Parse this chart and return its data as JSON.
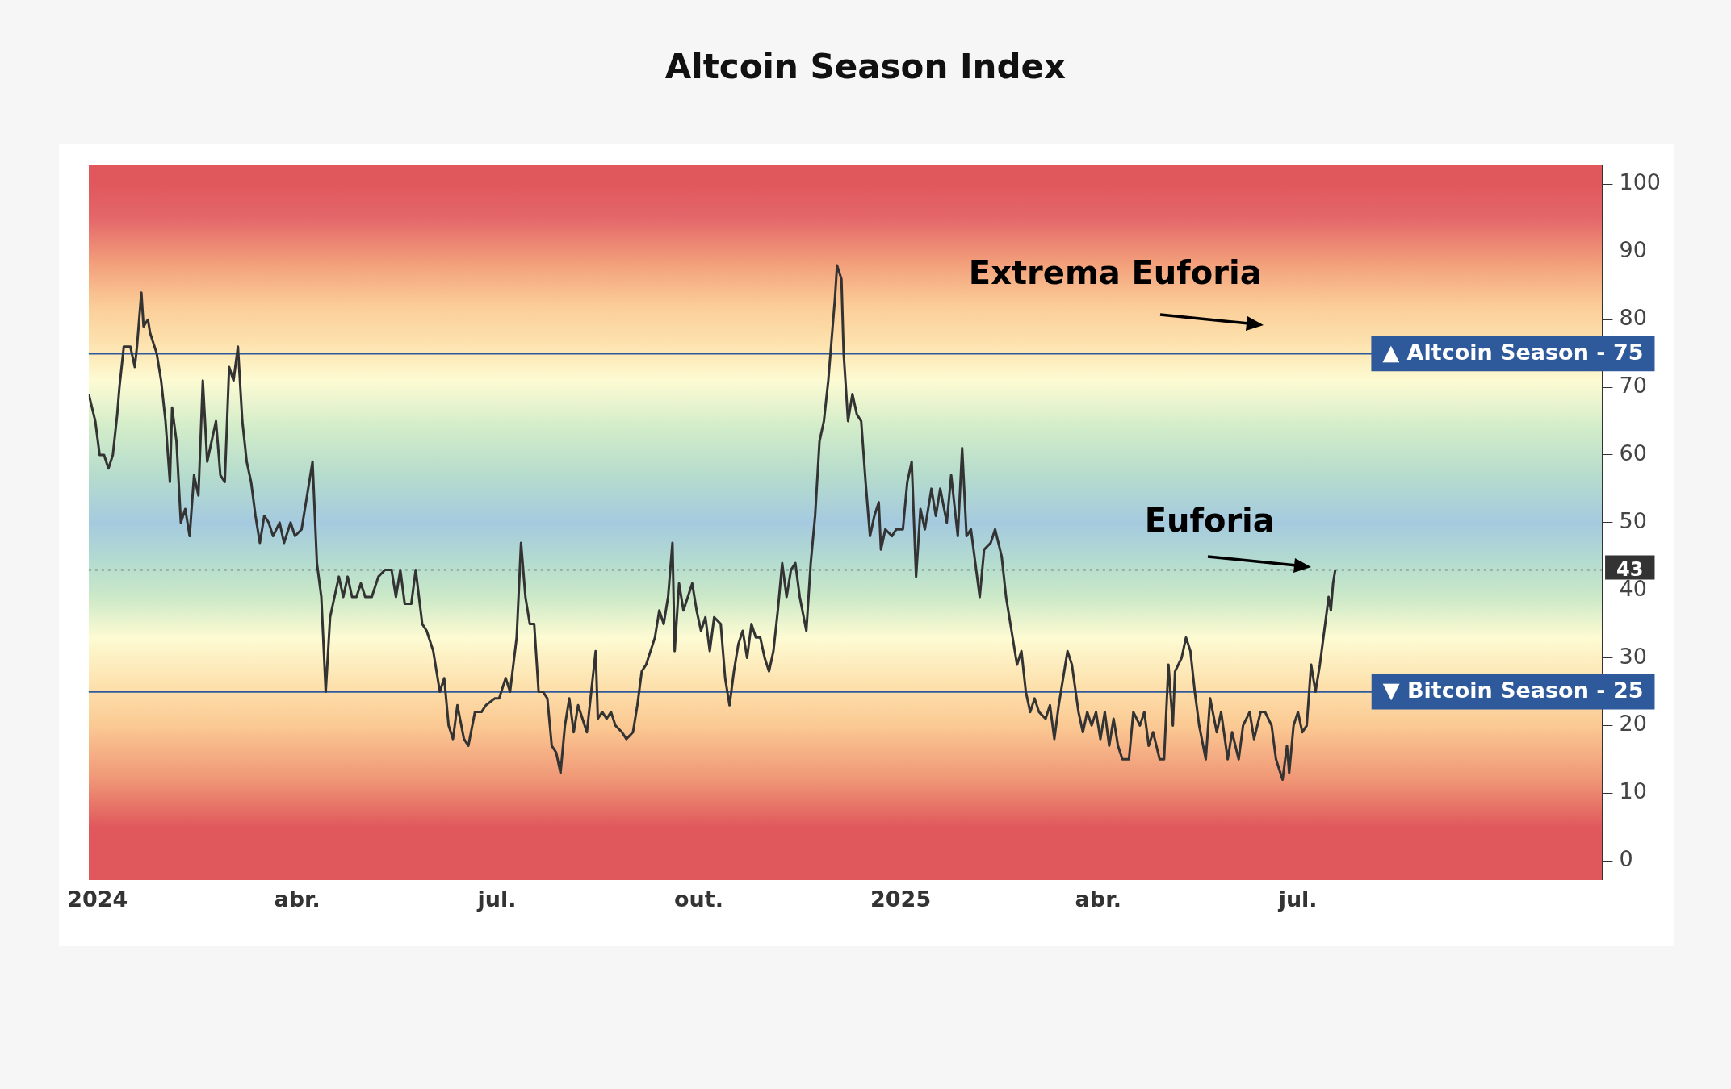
{
  "chart_data": {
    "type": "line",
    "title": "Altcoin Season Index",
    "x": [
      "2023-12-28",
      "2023-12-31",
      "2024-01-02",
      "2024-01-04",
      "2024-01-06",
      "2024-01-08",
      "2024-01-10",
      "2024-01-11",
      "2024-01-13",
      "2024-01-16",
      "2024-01-18",
      "2024-01-19",
      "2024-01-21",
      "2024-01-22",
      "2024-01-24",
      "2024-01-25",
      "2024-01-28",
      "2024-01-30",
      "2024-02-01",
      "2024-02-03",
      "2024-02-04",
      "2024-02-06",
      "2024-02-08",
      "2024-02-10",
      "2024-02-12",
      "2024-02-14",
      "2024-02-16",
      "2024-02-18",
      "2024-02-20",
      "2024-02-22",
      "2024-02-24",
      "2024-02-26",
      "2024-02-28",
      "2024-03-01",
      "2024-03-03",
      "2024-03-05",
      "2024-03-07",
      "2024-03-09",
      "2024-03-11",
      "2024-03-13",
      "2024-03-15",
      "2024-03-17",
      "2024-03-19",
      "2024-03-21",
      "2024-03-24",
      "2024-03-26",
      "2024-03-29",
      "2024-03-31",
      "2024-04-03",
      "2024-04-05",
      "2024-04-08",
      "2024-04-10",
      "2024-04-12",
      "2024-04-14",
      "2024-04-16",
      "2024-04-18",
      "2024-04-20",
      "2024-04-22",
      "2024-04-24",
      "2024-04-26",
      "2024-04-28",
      "2024-04-30",
      "2024-05-02",
      "2024-05-05",
      "2024-05-08",
      "2024-05-11",
      "2024-05-14",
      "2024-05-16",
      "2024-05-18",
      "2024-05-20",
      "2024-05-23",
      "2024-05-25",
      "2024-05-28",
      "2024-05-30",
      "2024-06-02",
      "2024-06-05",
      "2024-06-07",
      "2024-06-09",
      "2024-06-11",
      "2024-06-13",
      "2024-06-16",
      "2024-06-18",
      "2024-06-21",
      "2024-06-24",
      "2024-06-26",
      "2024-06-30",
      "2024-07-02",
      "2024-07-05",
      "2024-07-07",
      "2024-07-10",
      "2024-07-12",
      "2024-07-14",
      "2024-07-16",
      "2024-07-18",
      "2024-07-20",
      "2024-07-22",
      "2024-07-24",
      "2024-07-26",
      "2024-07-28",
      "2024-07-30",
      "2024-08-01",
      "2024-08-03",
      "2024-08-05",
      "2024-08-07",
      "2024-08-09",
      "2024-08-11",
      "2024-08-13",
      "2024-08-15",
      "2024-08-16",
      "2024-08-18",
      "2024-08-20",
      "2024-08-22",
      "2024-08-24",
      "2024-08-27",
      "2024-08-29",
      "2024-09-01",
      "2024-09-03",
      "2024-09-05",
      "2024-09-07",
      "2024-09-09",
      "2024-09-11",
      "2024-09-13",
      "2024-09-15",
      "2024-09-17",
      "2024-09-19",
      "2024-09-20",
      "2024-09-22",
      "2024-09-24",
      "2024-09-26",
      "2024-09-28",
      "2024-09-30",
      "2024-10-02",
      "2024-10-04",
      "2024-10-06",
      "2024-10-08",
      "2024-10-11",
      "2024-10-13",
      "2024-10-15",
      "2024-10-17",
      "2024-10-19",
      "2024-10-21",
      "2024-10-23",
      "2024-10-25",
      "2024-10-27",
      "2024-10-29",
      "2024-10-31",
      "2024-11-02",
      "2024-11-04",
      "2024-11-06",
      "2024-11-08",
      "2024-11-10",
      "2024-11-12",
      "2024-11-14",
      "2024-11-16",
      "2024-11-19",
      "2024-11-21",
      "2024-11-23",
      "2024-11-25",
      "2024-11-27",
      "2024-11-29",
      "2024-12-02",
      "2024-12-03",
      "2024-12-05",
      "2024-12-06",
      "2024-12-08",
      "2024-12-10",
      "2024-12-12",
      "2024-12-14",
      "2024-12-16",
      "2024-12-18",
      "2024-12-20",
      "2024-12-22",
      "2024-12-23",
      "2024-12-25",
      "2024-12-28",
      "2024-12-30",
      "2025-01-02",
      "2025-01-04",
      "2025-01-06",
      "2025-01-08",
      "2025-01-10",
      "2025-01-12",
      "2025-01-15",
      "2025-01-17",
      "2025-01-19",
      "2025-01-22",
      "2025-01-24",
      "2025-01-27",
      "2025-01-29",
      "2025-01-31",
      "2025-02-02",
      "2025-02-04",
      "2025-02-06",
      "2025-02-08",
      "2025-02-11",
      "2025-02-13",
      "2025-02-16",
      "2025-02-18",
      "2025-02-21",
      "2025-02-23",
      "2025-02-25",
      "2025-02-27",
      "2025-03-01",
      "2025-03-03",
      "2025-03-05",
      "2025-03-08",
      "2025-03-10",
      "2025-03-12",
      "2025-03-14",
      "2025-03-16",
      "2025-03-18",
      "2025-03-20",
      "2025-03-23",
      "2025-03-25",
      "2025-03-27",
      "2025-03-29",
      "2025-03-31",
      "2025-04-02",
      "2025-04-04",
      "2025-04-06",
      "2025-04-08",
      "2025-04-10",
      "2025-04-12",
      "2025-04-15",
      "2025-04-17",
      "2025-04-20",
      "2025-04-22",
      "2025-04-24",
      "2025-04-26",
      "2025-04-29",
      "2025-05-01",
      "2025-05-03",
      "2025-05-05",
      "2025-05-06",
      "2025-05-09",
      "2025-05-11",
      "2025-05-13",
      "2025-05-15",
      "2025-05-17",
      "2025-05-20",
      "2025-05-22",
      "2025-05-25",
      "2025-05-27",
      "2025-05-30",
      "2025-06-01",
      "2025-06-04",
      "2025-06-06",
      "2025-06-09",
      "2025-06-11",
      "2025-06-14",
      "2025-06-16",
      "2025-06-19",
      "2025-06-21",
      "2025-06-24",
      "2025-06-26",
      "2025-06-27",
      "2025-06-29",
      "2025-07-01",
      "2025-07-03",
      "2025-07-05",
      "2025-07-07",
      "2025-07-09",
      "2025-07-11",
      "2025-07-13",
      "2025-07-15",
      "2025-07-16",
      "2025-07-17",
      "2025-07-18"
    ],
    "series": [
      {
        "color": "#333333",
        "values": [
          69,
          65,
          60,
          60,
          58,
          60,
          66,
          70,
          76,
          76,
          73,
          76,
          84,
          79,
          80,
          78,
          75,
          71,
          65,
          56,
          67,
          62,
          50,
          52,
          48,
          57,
          54,
          71,
          59,
          62,
          65,
          57,
          56,
          73,
          71,
          76,
          65,
          59,
          56,
          51,
          47,
          51,
          50,
          48,
          50,
          47,
          50,
          48,
          49,
          53,
          59,
          44,
          39,
          25,
          36,
          39,
          42,
          39,
          42,
          39,
          39,
          41,
          39,
          39,
          42,
          43,
          43,
          39,
          43,
          38,
          38,
          43,
          35,
          34,
          31,
          25,
          27,
          20,
          18,
          23,
          18,
          17,
          22,
          22,
          23,
          24,
          24,
          27,
          25,
          33,
          47,
          39,
          35,
          35,
          25,
          25,
          24,
          17,
          16,
          13,
          20,
          24,
          19,
          23,
          21,
          19,
          25,
          31,
          21,
          22,
          21,
          22,
          20,
          19,
          18,
          19,
          23,
          28,
          29,
          31,
          33,
          37,
          35,
          39,
          47,
          31,
          41,
          37,
          39,
          41,
          37,
          34,
          36,
          31,
          36,
          35,
          27,
          23,
          28,
          32,
          34,
          30,
          35,
          33,
          33,
          30,
          28,
          31,
          37,
          44,
          39,
          43,
          44,
          39,
          34,
          44,
          51,
          62,
          65,
          71,
          83,
          88,
          86,
          75,
          65,
          69,
          66,
          65,
          56,
          48,
          51,
          53,
          46,
          49,
          48,
          49,
          49,
          56,
          59,
          42,
          52,
          49,
          55,
          51,
          55,
          50,
          57,
          48,
          61,
          48,
          49,
          44,
          39,
          46,
          47,
          49,
          45,
          39,
          33,
          29,
          31,
          25,
          22,
          24,
          22,
          21,
          23,
          18,
          23,
          27,
          31,
          29,
          22,
          19,
          22,
          20,
          22,
          18,
          22,
          17,
          21,
          17,
          15,
          15,
          22,
          20,
          22,
          17,
          19,
          15,
          15,
          29,
          20,
          28,
          30,
          33,
          31,
          25,
          20,
          15,
          24,
          19,
          22,
          15,
          19,
          15,
          20,
          22,
          18,
          22,
          22,
          20,
          15,
          12,
          17,
          13,
          20,
          22,
          19,
          20,
          29,
          25,
          29,
          34,
          39,
          37,
          41,
          43
        ]
      }
    ],
    "xlim": [
      "2023-12-28",
      "2025-11-17"
    ],
    "xticks": [
      {
        "value": "2024-01-01",
        "label": "2024"
      },
      {
        "value": "2024-04-01",
        "label": "abr."
      },
      {
        "value": "2024-07-01",
        "label": "jul."
      },
      {
        "value": "2024-10-01",
        "label": "out."
      },
      {
        "value": "2025-01-01",
        "label": "2025"
      },
      {
        "value": "2025-04-01",
        "label": "abr."
      },
      {
        "value": "2025-07-01",
        "label": "jul."
      }
    ],
    "ylim": [
      -2.8,
      102.8
    ],
    "yticks": [
      0,
      10,
      20,
      30,
      40,
      50,
      60,
      70,
      80,
      90,
      100
    ],
    "grid": false,
    "legend": false,
    "ref_lines": [
      {
        "axis": "y",
        "value": 75,
        "label": "▲ Altcoin Season - 75",
        "color": "#2e5a9c"
      },
      {
        "axis": "y",
        "value": 25,
        "label": "▼ Bitcoin Season - 25",
        "color": "#2e5a9c"
      },
      {
        "axis": "y",
        "value": 43,
        "label": "43",
        "color": "#333333",
        "line_style": "dotted"
      }
    ],
    "annotations": [
      "Extrema Euforia",
      {
        "text": "Euforia",
        "x": "2025-07-18",
        "y": 43
      }
    ]
  }
}
